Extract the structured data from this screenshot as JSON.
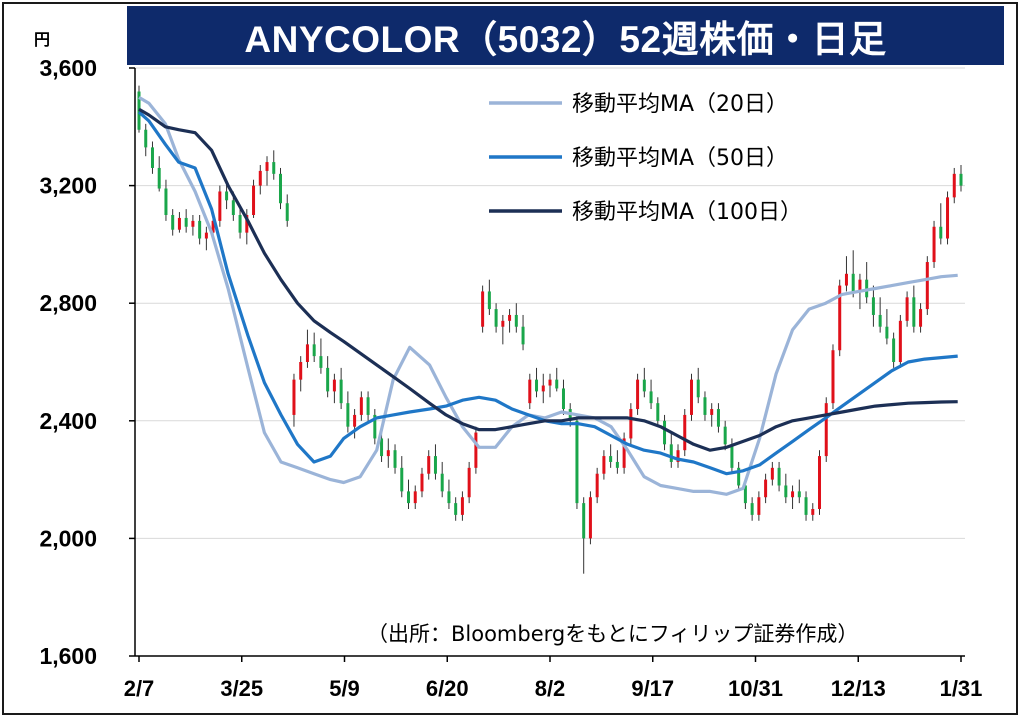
{
  "title": "ANYCOLOR（5032）52週株価・日足",
  "unit_label": "円",
  "source_note": "（出所：Bloombergをもとにフィリップ証券作成）",
  "colors": {
    "title_bg": "#0e2a6b",
    "candle_up": "#e0101a",
    "candle_down": "#1aa64a",
    "wick": "#333333",
    "ma20": "#9bb4d8",
    "ma50": "#1f77c7",
    "ma100": "#1c2f55"
  },
  "chart_data": {
    "type": "candlestick",
    "ylim": [
      1600,
      3600
    ],
    "yticks": [
      1600,
      2000,
      2400,
      2800,
      3200,
      3600
    ],
    "ytick_labels": [
      "1,600",
      "2,000",
      "2,400",
      "2,800",
      "3,200",
      "3,600"
    ],
    "xtick_labels": [
      "2/7",
      "3/25",
      "5/9",
      "6/20",
      "8/2",
      "9/17",
      "10/31",
      "12/13",
      "1/31"
    ],
    "legend_position": "top-right",
    "grid": "horizontal",
    "series": [
      {
        "name": "移動平均MA（20日）",
        "x": [
          0,
          3,
          8,
          12,
          17,
          22,
          27,
          33,
          38,
          43,
          48,
          53,
          58,
          62,
          67,
          72,
          77,
          82,
          88,
          93,
          98,
          103,
          108,
          113,
          118,
          123,
          128,
          133,
          138,
          143,
          148,
          153,
          158,
          163,
          168,
          173,
          178,
          183,
          188,
          193,
          198,
          203,
          208,
          213,
          218,
          223,
          228,
          233,
          238,
          243,
          248
        ],
        "values": [
          3500,
          3480,
          3410,
          3290,
          3180,
          3040,
          2850,
          2580,
          2360,
          2260,
          2240,
          2220,
          2200,
          2190,
          2210,
          2300,
          2540,
          2650,
          2590,
          2480,
          2380,
          2310,
          2310,
          2380,
          2420,
          2410,
          2430,
          2420,
          2410,
          2380,
          2300,
          2210,
          2180,
          2170,
          2160,
          2160,
          2150,
          2170,
          2340,
          2560,
          2710,
          2780,
          2800,
          2830,
          2840,
          2850,
          2860,
          2870,
          2880,
          2890,
          2895
        ]
      },
      {
        "name": "移動平均MA（50日）",
        "x": [
          0,
          3,
          8,
          12,
          17,
          22,
          27,
          33,
          38,
          43,
          48,
          53,
          58,
          62,
          67,
          72,
          77,
          82,
          88,
          93,
          98,
          103,
          108,
          113,
          118,
          123,
          128,
          133,
          138,
          143,
          148,
          153,
          158,
          163,
          168,
          173,
          178,
          183,
          188,
          193,
          198,
          203,
          208,
          213,
          218,
          223,
          228,
          233,
          238,
          243,
          248
        ],
        "values": [
          3450,
          3420,
          3340,
          3280,
          3260,
          3120,
          2900,
          2690,
          2530,
          2420,
          2320,
          2260,
          2280,
          2340,
          2380,
          2410,
          2420,
          2430,
          2440,
          2450,
          2470,
          2480,
          2470,
          2440,
          2420,
          2400,
          2390,
          2390,
          2380,
          2350,
          2320,
          2300,
          2290,
          2270,
          2260,
          2240,
          2220,
          2230,
          2250,
          2290,
          2330,
          2370,
          2410,
          2450,
          2490,
          2530,
          2570,
          2600,
          2610,
          2615,
          2620
        ]
      },
      {
        "name": "移動平均MA（100日）",
        "x": [
          0,
          3,
          8,
          12,
          17,
          22,
          27,
          33,
          38,
          43,
          48,
          53,
          58,
          62,
          67,
          72,
          77,
          82,
          88,
          93,
          98,
          103,
          108,
          113,
          118,
          123,
          128,
          133,
          138,
          143,
          148,
          153,
          158,
          163,
          168,
          173,
          178,
          183,
          188,
          193,
          198,
          203,
          208,
          213,
          218,
          223,
          228,
          233,
          238,
          243,
          248
        ],
        "values": [
          3460,
          3440,
          3400,
          3390,
          3380,
          3320,
          3200,
          3080,
          2970,
          2880,
          2800,
          2740,
          2700,
          2670,
          2630,
          2590,
          2550,
          2510,
          2460,
          2420,
          2390,
          2370,
          2370,
          2380,
          2390,
          2400,
          2400,
          2410,
          2410,
          2410,
          2410,
          2400,
          2380,
          2350,
          2320,
          2300,
          2310,
          2330,
          2350,
          2380,
          2400,
          2410,
          2420,
          2430,
          2440,
          2450,
          2455,
          2460,
          2462,
          2464,
          2465
        ]
      }
    ],
    "candles": [
      [
        3520,
        3540,
        3380,
        3390
      ],
      [
        3390,
        3410,
        3300,
        3330
      ],
      [
        3330,
        3350,
        3240,
        3260
      ],
      [
        3260,
        3300,
        3180,
        3190
      ],
      [
        3190,
        3220,
        3080,
        3100
      ],
      [
        3100,
        3120,
        3030,
        3050
      ],
      [
        3050,
        3110,
        3040,
        3090
      ],
      [
        3090,
        3120,
        3040,
        3060
      ],
      [
        3060,
        3100,
        3030,
        3080
      ],
      [
        3080,
        3100,
        3000,
        3020
      ],
      [
        3020,
        3060,
        2980,
        3040
      ],
      [
        3040,
        3090,
        3020,
        3080
      ],
      [
        3080,
        3200,
        3060,
        3180
      ],
      [
        3180,
        3210,
        3120,
        3150
      ],
      [
        3150,
        3180,
        3080,
        3100
      ],
      [
        3100,
        3130,
        3020,
        3040
      ],
      [
        3040,
        3120,
        3000,
        3100
      ],
      [
        3100,
        3220,
        3090,
        3200
      ],
      [
        3200,
        3270,
        3170,
        3250
      ],
      [
        3250,
        3300,
        3200,
        3280
      ],
      [
        3280,
        3320,
        3220,
        3240
      ],
      [
        3240,
        3260,
        3120,
        3140
      ],
      [
        3140,
        3170,
        3060,
        3080
      ],
      [
        2420,
        2560,
        2380,
        2540
      ],
      [
        2540,
        2620,
        2500,
        2600
      ],
      [
        2600,
        2710,
        2580,
        2660
      ],
      [
        2660,
        2700,
        2600,
        2620
      ],
      [
        2620,
        2680,
        2560,
        2580
      ],
      [
        2580,
        2620,
        2480,
        2500
      ],
      [
        2500,
        2560,
        2460,
        2540
      ],
      [
        2540,
        2580,
        2440,
        2460
      ],
      [
        2460,
        2500,
        2360,
        2380
      ],
      [
        2380,
        2440,
        2340,
        2420
      ],
      [
        2420,
        2500,
        2400,
        2480
      ],
      [
        2480,
        2500,
        2400,
        2420
      ],
      [
        2420,
        2440,
        2320,
        2340
      ],
      [
        2340,
        2380,
        2260,
        2280
      ],
      [
        2280,
        2340,
        2240,
        2300
      ],
      [
        2300,
        2320,
        2220,
        2240
      ],
      [
        2240,
        2280,
        2140,
        2160
      ],
      [
        2160,
        2200,
        2100,
        2120
      ],
      [
        2120,
        2180,
        2100,
        2160
      ],
      [
        2160,
        2240,
        2140,
        2220
      ],
      [
        2220,
        2300,
        2200,
        2280
      ],
      [
        2280,
        2320,
        2200,
        2220
      ],
      [
        2220,
        2260,
        2140,
        2160
      ],
      [
        2160,
        2200,
        2100,
        2120
      ],
      [
        2120,
        2140,
        2060,
        2080
      ],
      [
        2080,
        2160,
        2060,
        2140
      ],
      [
        2140,
        2260,
        2120,
        2240
      ],
      [
        2240,
        2380,
        2220,
        2360
      ],
      [
        2720,
        2860,
        2700,
        2840
      ],
      [
        2840,
        2880,
        2760,
        2780
      ],
      [
        2780,
        2800,
        2700,
        2720
      ],
      [
        2720,
        2760,
        2660,
        2740
      ],
      [
        2740,
        2780,
        2700,
        2760
      ],
      [
        2760,
        2800,
        2700,
        2720
      ],
      [
        2720,
        2760,
        2640,
        2660
      ],
      [
        2460,
        2560,
        2440,
        2540
      ],
      [
        2540,
        2580,
        2480,
        2500
      ],
      [
        2500,
        2560,
        2460,
        2520
      ],
      [
        2520,
        2560,
        2480,
        2540
      ],
      [
        2540,
        2580,
        2500,
        2510
      ],
      [
        2510,
        2540,
        2420,
        2440
      ],
      [
        2440,
        2460,
        2380,
        2400
      ],
      [
        2400,
        2420,
        2100,
        2120
      ],
      [
        2120,
        2140,
        1880,
        2000
      ],
      [
        2000,
        2160,
        1980,
        2140
      ],
      [
        2140,
        2240,
        2120,
        2220
      ],
      [
        2220,
        2300,
        2200,
        2280
      ],
      [
        2280,
        2320,
        2240,
        2260
      ],
      [
        2260,
        2300,
        2220,
        2240
      ],
      [
        2240,
        2360,
        2220,
        2340
      ],
      [
        2340,
        2460,
        2320,
        2440
      ],
      [
        2440,
        2560,
        2420,
        2540
      ],
      [
        2540,
        2580,
        2480,
        2500
      ],
      [
        2500,
        2540,
        2440,
        2460
      ],
      [
        2460,
        2480,
        2380,
        2400
      ],
      [
        2400,
        2420,
        2300,
        2320
      ],
      [
        2320,
        2360,
        2240,
        2260
      ],
      [
        2260,
        2320,
        2240,
        2300
      ],
      [
        2300,
        2440,
        2280,
        2420
      ],
      [
        2420,
        2560,
        2400,
        2540
      ],
      [
        2540,
        2580,
        2460,
        2480
      ],
      [
        2480,
        2500,
        2400,
        2420
      ],
      [
        2420,
        2460,
        2380,
        2440
      ],
      [
        2440,
        2460,
        2360,
        2380
      ],
      [
        2380,
        2400,
        2300,
        2320
      ],
      [
        2320,
        2340,
        2220,
        2240
      ],
      [
        2240,
        2260,
        2160,
        2180
      ],
      [
        2180,
        2200,
        2100,
        2120
      ],
      [
        2120,
        2140,
        2060,
        2080
      ],
      [
        2080,
        2160,
        2060,
        2140
      ],
      [
        2140,
        2220,
        2120,
        2200
      ],
      [
        2200,
        2260,
        2180,
        2240
      ],
      [
        2240,
        2260,
        2160,
        2180
      ],
      [
        2180,
        2220,
        2120,
        2140
      ],
      [
        2140,
        2180,
        2100,
        2160
      ],
      [
        2160,
        2200,
        2120,
        2140
      ],
      [
        2140,
        2160,
        2060,
        2080
      ],
      [
        2080,
        2120,
        2060,
        2100
      ],
      [
        2100,
        2300,
        2080,
        2280
      ],
      [
        2280,
        2480,
        2260,
        2460
      ],
      [
        2460,
        2660,
        2440,
        2640
      ],
      [
        2640,
        2880,
        2620,
        2860
      ],
      [
        2860,
        2960,
        2840,
        2900
      ],
      [
        2900,
        2980,
        2820,
        2840
      ],
      [
        2840,
        2900,
        2780,
        2880
      ],
      [
        2880,
        2940,
        2800,
        2820
      ],
      [
        2820,
        2860,
        2720,
        2760
      ],
      [
        2760,
        2820,
        2700,
        2720
      ],
      [
        2720,
        2780,
        2660,
        2680
      ],
      [
        2680,
        2700,
        2580,
        2600
      ],
      [
        2600,
        2760,
        2580,
        2740
      ],
      [
        2740,
        2840,
        2720,
        2820
      ],
      [
        2820,
        2860,
        2700,
        2720
      ],
      [
        2720,
        2800,
        2700,
        2780
      ],
      [
        2780,
        2960,
        2760,
        2940
      ],
      [
        2940,
        3080,
        2920,
        3060
      ],
      [
        3060,
        3140,
        3000,
        3020
      ],
      [
        3020,
        3180,
        3000,
        3160
      ],
      [
        3160,
        3260,
        3140,
        3240
      ],
      [
        3240,
        3270,
        3180,
        3200
      ]
    ]
  }
}
